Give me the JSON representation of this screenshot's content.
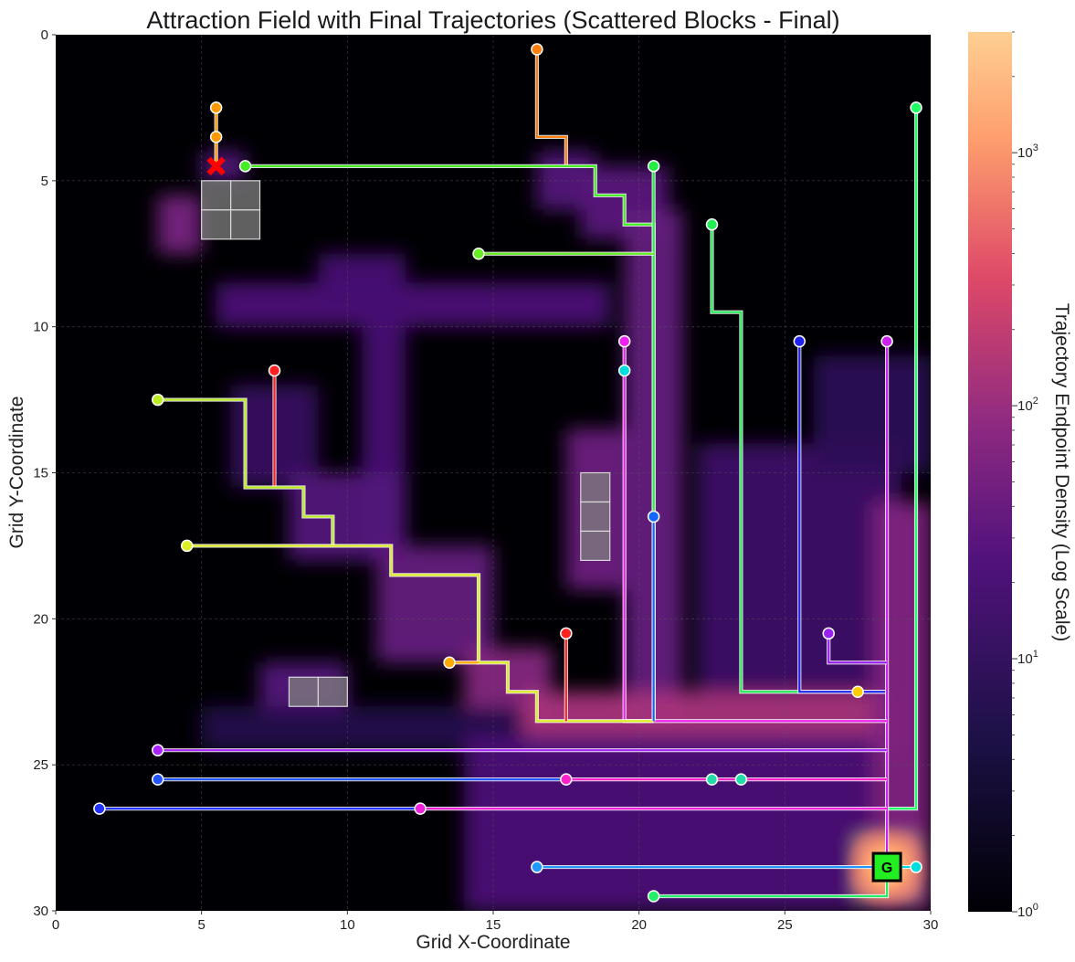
{
  "chart_data": {
    "type": "heatmap",
    "title": "Attraction Field with Final Trajectories (Scattered Blocks - Final)",
    "xlabel": "Grid X-Coordinate",
    "ylabel": "Grid Y-Coordinate",
    "xlim": [
      0,
      30
    ],
    "ylim": [
      30,
      0
    ],
    "x_ticks": [
      "0",
      "5",
      "10",
      "15",
      "20",
      "25",
      "30"
    ],
    "y_ticks": [
      "0",
      "5",
      "10",
      "15",
      "20",
      "25",
      "30"
    ],
    "grid": true,
    "colorbar": {
      "label": "Trajectory Endpoint Density (Log Scale)",
      "scale": "log",
      "range": [
        1,
        3000
      ],
      "ticks": [
        {
          "value": 1,
          "base": "10",
          "exp": "0"
        },
        {
          "value": 10,
          "base": "10",
          "exp": "1"
        },
        {
          "value": 100,
          "base": "10",
          "exp": "2"
        },
        {
          "value": 1000,
          "base": "10",
          "exp": "3"
        }
      ],
      "colormap": [
        "#000004",
        "#3b0f70",
        "#8c2981",
        "#de4968",
        "#fe9f6d",
        "#fcfdbf"
      ]
    },
    "goal": {
      "x": 28.5,
      "y": 28.5,
      "label": "G",
      "color": "#22ee22"
    },
    "failure_marker": {
      "x": 5.5,
      "y": 4.5,
      "color": "#ff0000"
    },
    "obstacles": [
      {
        "x": 5,
        "y": 5
      },
      {
        "x": 6,
        "y": 5
      },
      {
        "x": 5,
        "y": 6
      },
      {
        "x": 6,
        "y": 6
      },
      {
        "x": 18,
        "y": 15
      },
      {
        "x": 18,
        "y": 16
      },
      {
        "x": 18,
        "y": 17
      },
      {
        "x": 8,
        "y": 22
      },
      {
        "x": 9,
        "y": 22
      }
    ],
    "density_regions": [
      {
        "x0": 5,
        "y0": 4,
        "x1": 6.5,
        "y1": 5,
        "value": 12
      },
      {
        "x0": 3.5,
        "y0": 5.5,
        "x1": 5,
        "y1": 7.5,
        "value": 28
      },
      {
        "x0": 5.5,
        "y0": 8.5,
        "x1": 19,
        "y1": 10,
        "value": 10
      },
      {
        "x0": 9,
        "y0": 7.5,
        "x1": 12,
        "y1": 9,
        "value": 9
      },
      {
        "x0": 10.5,
        "y0": 9.5,
        "x1": 12,
        "y1": 18,
        "value": 9
      },
      {
        "x0": 16.5,
        "y0": 4,
        "x1": 18.5,
        "y1": 6,
        "value": 12
      },
      {
        "x0": 18,
        "y0": 4.5,
        "x1": 21,
        "y1": 7,
        "value": 14
      },
      {
        "x0": 19.5,
        "y0": 6,
        "x1": 21.5,
        "y1": 23.5,
        "value": 18
      },
      {
        "x0": 6,
        "y0": 12,
        "x1": 9,
        "y1": 15.5,
        "value": 6
      },
      {
        "x0": 8,
        "y0": 15,
        "x1": 12,
        "y1": 18,
        "value": 12
      },
      {
        "x0": 11,
        "y0": 17.5,
        "x1": 15,
        "y1": 21.5,
        "value": 18
      },
      {
        "x0": 14,
        "y0": 21,
        "x1": 17,
        "y1": 23.5,
        "value": 40
      },
      {
        "x0": 17.5,
        "y0": 13.5,
        "x1": 19.5,
        "y1": 19,
        "value": 22
      },
      {
        "x0": 7,
        "y0": 21.5,
        "x1": 10,
        "y1": 23.5,
        "value": 12
      },
      {
        "x0": 5,
        "y0": 23,
        "x1": 16,
        "y1": 24.5,
        "value": 4
      },
      {
        "x0": 16,
        "y0": 22.5,
        "x1": 29,
        "y1": 24.5,
        "value": 90
      },
      {
        "x0": 22,
        "y0": 14,
        "x1": 29,
        "y1": 22.5,
        "value": 7
      },
      {
        "x0": 26,
        "y0": 11,
        "x1": 30,
        "y1": 15,
        "value": 5
      },
      {
        "x0": 14,
        "y0": 24,
        "x1": 28,
        "y1": 30,
        "value": 10
      },
      {
        "x0": 28,
        "y0": 16,
        "x1": 30,
        "y1": 30,
        "value": 35
      },
      {
        "x0": 27.5,
        "y0": 27.5,
        "x1": 29.5,
        "y1": 29.5,
        "value": 2500
      }
    ],
    "trajectories": [
      {
        "color": "#ff7f0e",
        "points": [
          [
            16.5,
            0.5
          ],
          [
            16.5,
            3.5
          ],
          [
            17.5,
            3.5
          ],
          [
            17.5,
            4.5
          ]
        ],
        "markers": [
          [
            16.5,
            0.5
          ]
        ]
      },
      {
        "color": "#ff9900",
        "points": [
          [
            5.5,
            2.5
          ],
          [
            5.5,
            4.5
          ]
        ],
        "markers": [
          [
            5.5,
            2.5
          ],
          [
            5.5,
            3.5
          ]
        ]
      },
      {
        "color": "#44ee22",
        "points": [
          [
            6.5,
            4.5
          ],
          [
            18.5,
            4.5
          ],
          [
            18.5,
            5.5
          ],
          [
            19.5,
            5.5
          ],
          [
            19.5,
            6.5
          ],
          [
            20.5,
            6.5
          ],
          [
            20.5,
            23.5
          ]
        ],
        "markers": [
          [
            6.5,
            4.5
          ]
        ]
      },
      {
        "color": "#22ee44",
        "points": [
          [
            20.5,
            4.5
          ],
          [
            20.5,
            23.5
          ]
        ],
        "markers": [
          [
            20.5,
            4.5
          ]
        ]
      },
      {
        "color": "#66ee22",
        "points": [
          [
            14.5,
            7.5
          ],
          [
            20.5,
            7.5
          ]
        ],
        "markers": [
          [
            14.5,
            7.5
          ]
        ]
      },
      {
        "color": "#22ee55",
        "points": [
          [
            22.5,
            6.5
          ],
          [
            22.5,
            9.5
          ],
          [
            23.5,
            9.5
          ],
          [
            23.5,
            22.5
          ],
          [
            28.5,
            22.5
          ]
        ],
        "markers": [
          [
            22.5,
            6.5
          ]
        ]
      },
      {
        "color": "#22ff66",
        "points": [
          [
            29.5,
            2.5
          ],
          [
            29.5,
            26.5
          ],
          [
            28.5,
            26.5
          ]
        ],
        "markers": [
          [
            29.5,
            2.5
          ]
        ]
      },
      {
        "color": "#2222ee",
        "points": [
          [
            25.5,
            10.5
          ],
          [
            25.5,
            22.5
          ],
          [
            28.5,
            22.5
          ]
        ],
        "markers": [
          [
            25.5,
            10.5
          ]
        ]
      },
      {
        "color": "#cc22ee",
        "points": [
          [
            28.5,
            10.5
          ],
          [
            28.5,
            28.5
          ]
        ],
        "markers": [
          [
            28.5,
            10.5
          ]
        ]
      },
      {
        "color": "#ee22ee",
        "points": [
          [
            19.5,
            10.5
          ],
          [
            19.5,
            23.5
          ],
          [
            28.5,
            23.5
          ]
        ],
        "markers": [
          [
            19.5,
            10.5
          ]
        ]
      },
      {
        "color": "#00dddd",
        "points": [],
        "markers": [
          [
            19.5,
            11.5
          ]
        ]
      },
      {
        "color": "#ff2222",
        "points": [
          [
            7.5,
            11.5
          ],
          [
            7.5,
            15.5
          ]
        ],
        "markers": [
          [
            7.5,
            11.5
          ]
        ]
      },
      {
        "color": "#bbee22",
        "points": [
          [
            3.5,
            12.5
          ],
          [
            6.5,
            12.5
          ],
          [
            6.5,
            15.5
          ],
          [
            8.5,
            15.5
          ],
          [
            8.5,
            16.5
          ],
          [
            9.5,
            16.5
          ],
          [
            9.5,
            17.5
          ]
        ],
        "markers": [
          [
            3.5,
            12.5
          ]
        ]
      },
      {
        "color": "#ddee22",
        "points": [
          [
            4.5,
            17.5
          ],
          [
            11.5,
            17.5
          ],
          [
            11.5,
            18.5
          ],
          [
            14.5,
            18.5
          ],
          [
            14.5,
            21.5
          ],
          [
            15.5,
            21.5
          ],
          [
            15.5,
            22.5
          ],
          [
            16.5,
            22.5
          ],
          [
            16.5,
            23.5
          ],
          [
            20.5,
            23.5
          ]
        ],
        "markers": [
          [
            4.5,
            17.5
          ]
        ]
      },
      {
        "color": "#ffaa00",
        "points": [
          [
            13.5,
            21.5
          ],
          [
            14.5,
            21.5
          ]
        ],
        "markers": [
          [
            13.5,
            21.5
          ]
        ]
      },
      {
        "color": "#1166ff",
        "points": [
          [
            20.5,
            16.5
          ],
          [
            20.5,
            23.5
          ]
        ],
        "markers": [
          [
            20.5,
            16.5
          ]
        ]
      },
      {
        "color": "#ff2222",
        "points": [
          [
            17.5,
            20.5
          ],
          [
            17.5,
            23.5
          ]
        ],
        "markers": [
          [
            17.5,
            20.5
          ]
        ]
      },
      {
        "color": "#9922ee",
        "points": [
          [
            26.5,
            20.5
          ],
          [
            26.5,
            21.5
          ],
          [
            28.5,
            21.5
          ]
        ],
        "markers": [
          [
            26.5,
            20.5
          ]
        ]
      },
      {
        "color": "#ffcc00",
        "points": [],
        "markers": [
          [
            27.5,
            22.5
          ]
        ]
      },
      {
        "color": "#aa22ff",
        "points": [
          [
            3.5,
            24.5
          ],
          [
            28.5,
            24.5
          ]
        ],
        "markers": [
          [
            3.5,
            24.5
          ]
        ]
      },
      {
        "color": "#2255ff",
        "points": [
          [
            3.5,
            25.5
          ],
          [
            17.5,
            25.5
          ]
        ],
        "markers": [
          [
            3.5,
            25.5
          ]
        ]
      },
      {
        "color": "#ff22cc",
        "points": [
          [
            17.5,
            25.5
          ],
          [
            28.5,
            25.5
          ]
        ],
        "markers": [
          [
            17.5,
            25.5
          ]
        ]
      },
      {
        "color": "#22ddaa",
        "points": [],
        "markers": [
          [
            22.5,
            25.5
          ],
          [
            23.5,
            25.5
          ]
        ]
      },
      {
        "color": "#2233ff",
        "points": [
          [
            1.5,
            26.5
          ],
          [
            12.5,
            26.5
          ]
        ],
        "markers": [
          [
            1.5,
            26.5
          ]
        ]
      },
      {
        "color": "#ee22dd",
        "points": [
          [
            12.5,
            26.5
          ],
          [
            28.5,
            26.5
          ]
        ],
        "markers": [
          [
            12.5,
            26.5
          ]
        ]
      },
      {
        "color": "#2299ff",
        "points": [
          [
            16.5,
            28.5
          ],
          [
            28.5,
            28.5
          ]
        ],
        "markers": [
          [
            16.5,
            28.5
          ]
        ]
      },
      {
        "color": "#00dddd",
        "points": [
          [
            29.5,
            28.5
          ],
          [
            28.5,
            28.5
          ]
        ],
        "markers": [
          [
            29.5,
            28.5
          ]
        ]
      },
      {
        "color": "#22ee66",
        "points": [
          [
            20.5,
            29.5
          ],
          [
            28.5,
            29.5
          ],
          [
            28.5,
            28.5
          ]
        ],
        "markers": [
          [
            20.5,
            29.5
          ]
        ]
      }
    ]
  }
}
